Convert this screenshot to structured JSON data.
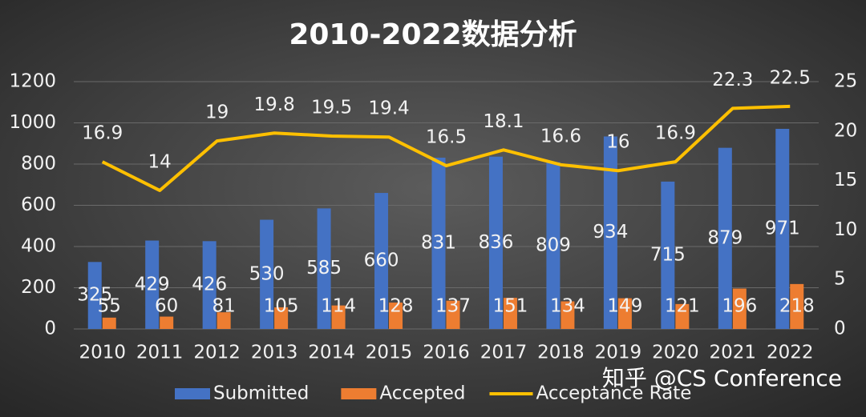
{
  "chart_data": {
    "type": "bar",
    "title": "2010-2022数据分析",
    "categories": [
      "2010",
      "2011",
      "2012",
      "2013",
      "2014",
      "2015",
      "2016",
      "2017",
      "2018",
      "2019",
      "2020",
      "2021",
      "2022"
    ],
    "series": [
      {
        "name": "Submitted",
        "color": "#4472c4",
        "values": [
          325,
          429,
          426,
          530,
          585,
          660,
          831,
          836,
          809,
          934,
          715,
          879,
          971
        ]
      },
      {
        "name": "Accepted",
        "color": "#ed7d31",
        "values": [
          55,
          60,
          81,
          105,
          114,
          128,
          137,
          151,
          134,
          149,
          121,
          196,
          218
        ]
      },
      {
        "name": "Acceptance Rate",
        "color": "#ffc000",
        "type": "line",
        "axis": "y2",
        "values": [
          16.9,
          14,
          19,
          19.8,
          19.5,
          19.4,
          16.5,
          18.1,
          16.6,
          16,
          16.9,
          22.3,
          22.5
        ]
      }
    ],
    "ylim": [
      0,
      1200
    ],
    "yticks": [
      0,
      200,
      400,
      600,
      800,
      1000,
      1200
    ],
    "y2lim": [
      0,
      25
    ],
    "y2ticks": [
      0,
      5,
      10,
      15,
      20,
      25
    ],
    "grid": true,
    "legend": "bottom",
    "watermark": "知乎 @CS Conference"
  }
}
